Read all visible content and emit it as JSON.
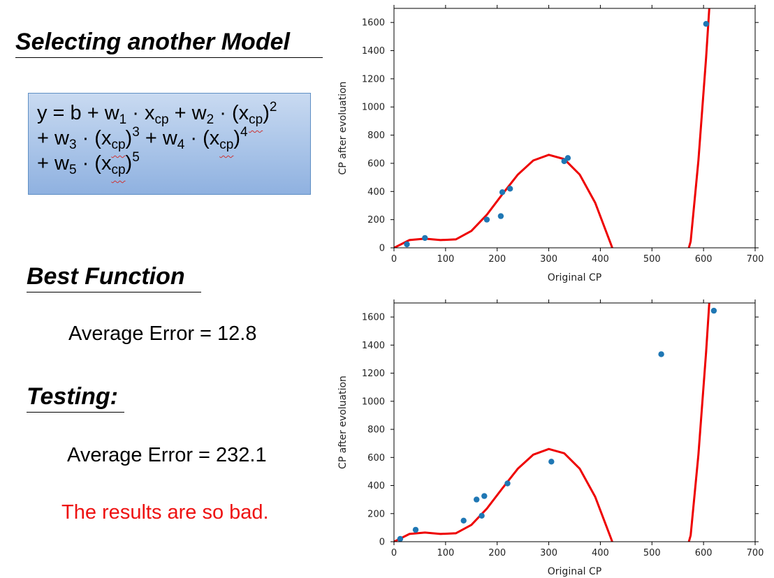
{
  "headings": {
    "selecting": "Selecting another Model",
    "best": "Best Function",
    "testing": "Testing:"
  },
  "formula": {
    "y": "y = b + w",
    "w1_sub": "1",
    "dot1": " · x",
    "x1_sub": "cp",
    "plus_w2": " + w",
    "w2_sub": "2",
    "dot2": " · (x",
    "x2_sub": "cp",
    "close2": ")",
    "pow2": "2",
    "plus_w3": "+ w",
    "w3_sub": "3",
    "dot3": " · (x",
    "x3_sub": "cp",
    "close3": ")",
    "pow3": "3",
    "plus_w4": " + w",
    "w4_sub": "4",
    "dot4": " · (x",
    "x4_sub": "cp",
    "close4": ")",
    "pow4": "4",
    "plus_w5": "+ w",
    "w5_sub": "5",
    "dot5": " · (x",
    "x5_sub": "cp",
    "close5": ")",
    "pow5": "5"
  },
  "stats": {
    "best_avg_error": "Average Error = 12.8",
    "test_avg_error": "Average Error = 232.1",
    "remark": "The results are so bad."
  },
  "colors": {
    "curve": "#ee0000",
    "points": "#1f77b4",
    "remark": "#ee1111"
  },
  "chart_data": [
    {
      "type": "scatter",
      "title": "",
      "xlabel": "Original CP",
      "ylabel": "CP after evoluation",
      "xlim": [
        0,
        700
      ],
      "ylim": [
        0,
        1700
      ],
      "xticks": [
        0,
        100,
        200,
        300,
        400,
        500,
        600,
        700
      ],
      "yticks": [
        0,
        200,
        400,
        600,
        800,
        1000,
        1200,
        1400,
        1600
      ],
      "grid": false,
      "points": [
        [
          25,
          25
        ],
        [
          60,
          70
        ],
        [
          180,
          200
        ],
        [
          207,
          225
        ],
        [
          210,
          395
        ],
        [
          225,
          420
        ],
        [
          330,
          615
        ],
        [
          337,
          638
        ],
        [
          605,
          1590
        ]
      ],
      "fit_curve": [
        [
          0,
          0
        ],
        [
          30,
          55
        ],
        [
          60,
          65
        ],
        [
          90,
          55
        ],
        [
          120,
          60
        ],
        [
          150,
          120
        ],
        [
          180,
          235
        ],
        [
          210,
          380
        ],
        [
          240,
          520
        ],
        [
          270,
          620
        ],
        [
          300,
          660
        ],
        [
          330,
          630
        ],
        [
          360,
          520
        ],
        [
          390,
          320
        ],
        [
          420,
          30
        ],
        [
          425,
          -20
        ],
        [
          570,
          -20
        ],
        [
          575,
          45
        ],
        [
          590,
          620
        ],
        [
          605,
          1350
        ],
        [
          612,
          1750
        ]
      ]
    },
    {
      "type": "scatter",
      "title": "",
      "xlabel": "Original CP",
      "ylabel": "CP after evoluation",
      "xlim": [
        0,
        700
      ],
      "ylim": [
        0,
        1700
      ],
      "xticks": [
        0,
        100,
        200,
        300,
        400,
        500,
        600,
        700
      ],
      "yticks": [
        0,
        200,
        400,
        600,
        800,
        1000,
        1200,
        1400,
        1600
      ],
      "grid": false,
      "points": [
        [
          12,
          20
        ],
        [
          42,
          85
        ],
        [
          135,
          150
        ],
        [
          160,
          300
        ],
        [
          170,
          185
        ],
        [
          175,
          325
        ],
        [
          220,
          415
        ],
        [
          305,
          570
        ],
        [
          518,
          1335
        ],
        [
          620,
          1645
        ]
      ],
      "fit_curve": [
        [
          0,
          0
        ],
        [
          30,
          55
        ],
        [
          60,
          65
        ],
        [
          90,
          55
        ],
        [
          120,
          60
        ],
        [
          150,
          120
        ],
        [
          180,
          235
        ],
        [
          210,
          380
        ],
        [
          240,
          520
        ],
        [
          270,
          620
        ],
        [
          300,
          660
        ],
        [
          330,
          630
        ],
        [
          360,
          520
        ],
        [
          390,
          320
        ],
        [
          420,
          30
        ],
        [
          425,
          -20
        ],
        [
          570,
          -20
        ],
        [
          575,
          45
        ],
        [
          590,
          620
        ],
        [
          605,
          1350
        ],
        [
          612,
          1750
        ]
      ]
    }
  ]
}
